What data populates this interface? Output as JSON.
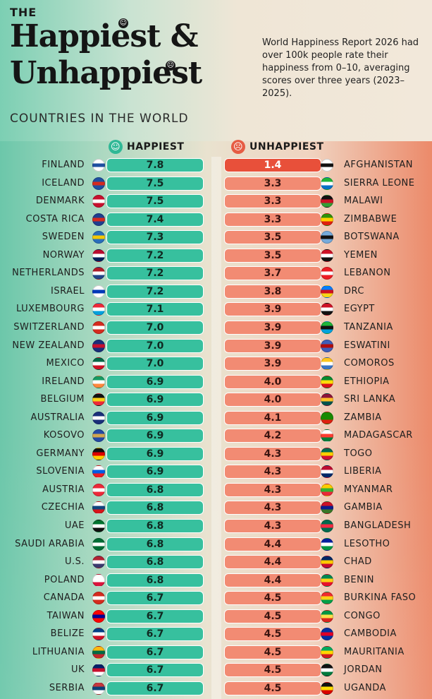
{
  "header": {
    "the": "THE",
    "title_line1": "Happiest &",
    "title_line2": "Unhappiest",
    "subtitle": "COUNTRIES IN THE WORLD",
    "description": "World Happiness Report 2026 had over 100k people rate their happiness from 0–10, averaging scores over three years (2023–2025).",
    "smile_glyph": "☺",
    "sad_glyph": "☹"
  },
  "legend": {
    "happiest": "HAPPIEST",
    "unhappiest": "UNHAPPIEST",
    "happiest_color": "#37c09e",
    "unhappiest_color": "#f28b73",
    "happy_icon": "smile-icon",
    "sad_icon": "frown-icon"
  },
  "chart_data": {
    "type": "bar",
    "title": "Happiest & Unhappiest Countries in the World",
    "series": [
      {
        "name": "HAPPIEST",
        "categories": [
          "FINLAND",
          "ICELAND",
          "DENMARK",
          "COSTA RICA",
          "SWEDEN",
          "NORWAY",
          "NETHERLANDS",
          "ISRAEL",
          "LUXEMBOURG",
          "SWITZERLAND",
          "NEW ZEALAND",
          "MEXICO",
          "IRELAND",
          "BELGIUM",
          "AUSTRALIA",
          "KOSOVO",
          "GERMANY",
          "SLOVENIA",
          "AUSTRIA",
          "CZECHIA",
          "UAE",
          "SAUDI ARABIA",
          "U.S.",
          "POLAND",
          "CANADA",
          "TAIWAN",
          "BELIZE",
          "LITHUANIA",
          "UK",
          "SERBIA"
        ],
        "values": [
          7.8,
          7.5,
          7.5,
          7.4,
          7.3,
          7.2,
          7.2,
          7.2,
          7.1,
          7.0,
          7.0,
          7.0,
          6.9,
          6.9,
          6.9,
          6.9,
          6.9,
          6.9,
          6.8,
          6.8,
          6.8,
          6.8,
          6.8,
          6.8,
          6.7,
          6.7,
          6.7,
          6.7,
          6.7,
          6.7
        ]
      },
      {
        "name": "UNHAPPIEST",
        "categories": [
          "AFGHANISTAN",
          "SIERRA LEONE",
          "MALAWI",
          "ZIMBABWE",
          "BOTSWANA",
          "YEMEN",
          "LEBANON",
          "DRC",
          "EGYPT",
          "TANZANIA",
          "ESWATINI",
          "COMOROS",
          "ETHIOPIA",
          "SRI LANKA",
          "ZAMBIA",
          "MADAGASCAR",
          "TOGO",
          "LIBERIA",
          "MYANMAR",
          "GAMBIA",
          "BANGLADESH",
          "LESOTHO",
          "CHAD",
          "BENIN",
          "BURKINA FASO",
          "CONGO",
          "CAMBODIA",
          "MAURITANIA",
          "JORDAN",
          "UGANDA"
        ],
        "values": [
          1.4,
          3.3,
          3.3,
          3.3,
          3.5,
          3.5,
          3.7,
          3.8,
          3.9,
          3.9,
          3.9,
          3.9,
          4.0,
          4.0,
          4.1,
          4.2,
          4.3,
          4.3,
          4.3,
          4.3,
          4.3,
          4.4,
          4.4,
          4.4,
          4.5,
          4.5,
          4.5,
          4.5,
          4.5,
          4.5
        ]
      }
    ],
    "flags_left": [
      [
        "#ffffff",
        "#1f4fa0",
        "#ffffff"
      ],
      [
        "#1f4fa0",
        "#d52b1e",
        "#1f4fa0"
      ],
      [
        "#c8102e",
        "#ffffff",
        "#c8102e"
      ],
      [
        "#1f3f8f",
        "#d52b1e",
        "#1f3f8f"
      ],
      [
        "#2a6ebb",
        "#f4c800",
        "#2a6ebb"
      ],
      [
        "#ba0c2f",
        "#ffffff",
        "#00205b"
      ],
      [
        "#ae1c28",
        "#ffffff",
        "#21468b"
      ],
      [
        "#ffffff",
        "#0038b8",
        "#ffffff"
      ],
      [
        "#ed2939",
        "#ffffff",
        "#00a1de"
      ],
      [
        "#d52b1e",
        "#ffffff",
        "#d52b1e"
      ],
      [
        "#1a2f7a",
        "#c8102e",
        "#1a2f7a"
      ],
      [
        "#006847",
        "#ffffff",
        "#ce1126"
      ],
      [
        "#169b62",
        "#ffffff",
        "#ff883e"
      ],
      [
        "#111111",
        "#f7d117",
        "#ed2939"
      ],
      [
        "#1a2f7a",
        "#ffffff",
        "#1a2f7a"
      ],
      [
        "#244aa5",
        "#d0a650",
        "#244aa5"
      ],
      [
        "#111111",
        "#dd0000",
        "#ffce00"
      ],
      [
        "#ffffff",
        "#005ce5",
        "#ed1c24"
      ],
      [
        "#ed2939",
        "#ffffff",
        "#ed2939"
      ],
      [
        "#ffffff",
        "#11457e",
        "#d7141a"
      ],
      [
        "#00732f",
        "#ffffff",
        "#111111"
      ],
      [
        "#006c35",
        "#ffffff",
        "#006c35"
      ],
      [
        "#b22234",
        "#ffffff",
        "#3c3b6e"
      ],
      [
        "#ffffff",
        "#ffffff",
        "#dc143c"
      ],
      [
        "#d52b1e",
        "#ffffff",
        "#d52b1e"
      ],
      [
        "#fe0000",
        "#000095",
        "#fe0000"
      ],
      [
        "#003f87",
        "#ffffff",
        "#ce1126"
      ],
      [
        "#fdb913",
        "#006a44",
        "#c1272d"
      ],
      [
        "#012169",
        "#c8102e",
        "#ffffff"
      ],
      [
        "#c6363c",
        "#0c4076",
        "#ffffff"
      ]
    ],
    "flags_right": [
      [
        "#ffffff",
        "#111111",
        "#ffffff"
      ],
      [
        "#1eb53a",
        "#ffffff",
        "#0072c6"
      ],
      [
        "#111111",
        "#ce1126",
        "#339e35"
      ],
      [
        "#319208",
        "#ffd200",
        "#de2010"
      ],
      [
        "#75aadb",
        "#111111",
        "#75aadb"
      ],
      [
        "#ce1126",
        "#ffffff",
        "#111111"
      ],
      [
        "#ed1c24",
        "#ffffff",
        "#ed1c24"
      ],
      [
        "#007fff",
        "#ce1021",
        "#f7d618"
      ],
      [
        "#ce1126",
        "#ffffff",
        "#111111"
      ],
      [
        "#1eb53a",
        "#111111",
        "#00a3dd"
      ],
      [
        "#3e5eb9",
        "#b10c0c",
        "#3e5eb9"
      ],
      [
        "#ffc61e",
        "#ffffff",
        "#3a75c4"
      ],
      [
        "#078930",
        "#fcdd09",
        "#da121a"
      ],
      [
        "#8d153a",
        "#ffbe29",
        "#00534e"
      ],
      [
        "#198a00",
        "#198a00",
        "#de2010"
      ],
      [
        "#ffffff",
        "#fc3d32",
        "#007e3a"
      ],
      [
        "#006a4e",
        "#ffce00",
        "#d21034"
      ],
      [
        "#bf0a30",
        "#ffffff",
        "#002868"
      ],
      [
        "#fecb00",
        "#34b233",
        "#ea2839"
      ],
      [
        "#ce1126",
        "#0c1c8c",
        "#3a7728"
      ],
      [
        "#006a4e",
        "#f42a41",
        "#006a4e"
      ],
      [
        "#00209f",
        "#ffffff",
        "#009543"
      ],
      [
        "#002664",
        "#fecb00",
        "#c60c30"
      ],
      [
        "#008751",
        "#fcd116",
        "#e8112d"
      ],
      [
        "#ef2b2d",
        "#fcd116",
        "#009e49"
      ],
      [
        "#009543",
        "#fbde4a",
        "#dc241f"
      ],
      [
        "#032ea1",
        "#e00025",
        "#032ea1"
      ],
      [
        "#00a95c",
        "#ffd700",
        "#d01c1f"
      ],
      [
        "#111111",
        "#ffffff",
        "#007a3d"
      ],
      [
        "#111111",
        "#fcdc04",
        "#d90000"
      ]
    ]
  }
}
